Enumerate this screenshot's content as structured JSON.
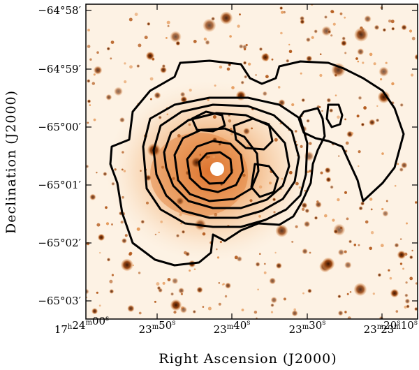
{
  "figure": {
    "xlabel": "Right Ascension (J2000)",
    "ylabel": "Declination (J2000)",
    "x_ticks": [
      {
        "h": "17",
        "m": "24",
        "s": "00"
      },
      {
        "h": "",
        "m": "23",
        "s": "50"
      },
      {
        "h": "",
        "m": "23",
        "s": "40"
      },
      {
        "h": "",
        "m": "23",
        "s": "30"
      },
      {
        "h": "",
        "m": "23",
        "s": "20"
      },
      {
        "h": "",
        "m": "23",
        "s": "10"
      }
    ],
    "y_ticks": [
      "−64°58′",
      "−64°59′",
      "−65°00′",
      "−65°01′",
      "−65°02′",
      "−65°03′"
    ],
    "colors": {
      "sky_background": "#fdf2e4",
      "diffuse_emission": "#e88a3c",
      "star_core": "#6a2a05",
      "contour": "#000000"
    }
  }
}
